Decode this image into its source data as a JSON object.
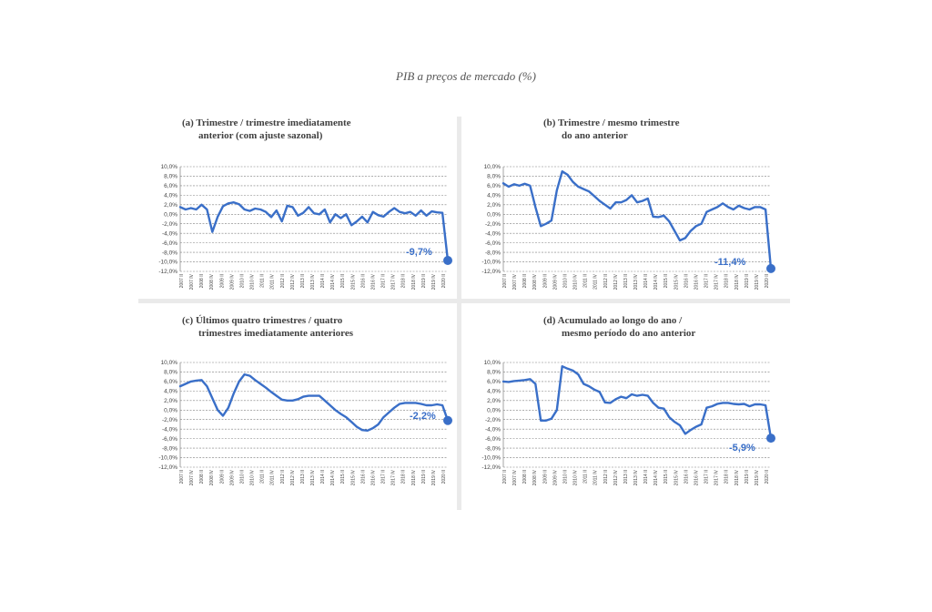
{
  "title": "PIB a preços de mercado (%)",
  "y_ticks": [
    "10,0%",
    "8,0%",
    "6,0%",
    "4,0%",
    "2,0%",
    "0,0%",
    "-2,0%",
    "-4,0%",
    "-6,0%",
    "-8,0%",
    "-10,0%",
    "-12,0%"
  ],
  "x_ticks": [
    "2007 II",
    "2007 IV",
    "2008 II",
    "2008 IV",
    "2009 II",
    "2009 IV",
    "2010 II",
    "2010 IV",
    "2011 II",
    "2011 IV",
    "2012 II",
    "2012 IV",
    "2013 II",
    "2013 IV",
    "2014 II",
    "2014 IV",
    "2015 II",
    "2015 IV",
    "2016 II",
    "2016 IV",
    "2017 II",
    "2017 IV",
    "2018 II",
    "2018 IV",
    "2019 II",
    "2019 IV",
    "2020 II"
  ],
  "colors": {
    "line": "#3a6fc8",
    "grid": "#7f7f7f",
    "title": "#555555"
  },
  "chart_data": [
    {
      "type": "line",
      "title": "(a) Trimestre / trimestre imediatamente anterior (com ajuste sazonal)",
      "title_lines": [
        "(a) Trimestre / trimestre imediatamente",
        "anterior (com ajuste sazonal)"
      ],
      "end_label": "-9,7%",
      "ylim": [
        -12,
        10
      ],
      "values": [
        1.5,
        1.0,
        1.3,
        1.0,
        2.0,
        1.0,
        -3.7,
        -0.5,
        1.7,
        2.3,
        2.5,
        2.1,
        1.0,
        0.7,
        1.2,
        1.0,
        0.5,
        -0.6,
        0.8,
        -1.5,
        1.8,
        1.5,
        -0.3,
        0.3,
        1.5,
        0.2,
        0.0,
        1.0,
        -1.7,
        0.0,
        -0.8,
        0.0,
        -2.3,
        -1.5,
        -0.5,
        -1.7,
        0.5,
        -0.2,
        -0.5,
        0.5,
        1.3,
        0.5,
        0.2,
        0.5,
        -0.3,
        0.8,
        -0.3,
        0.6,
        0.4,
        0.3,
        -9.7
      ]
    },
    {
      "type": "line",
      "title": "(b) Trimestre / mesmo trimestre do ano anterior",
      "title_lines": [
        "(b) Trimestre / mesmo trimestre",
        "do ano anterior"
      ],
      "end_label": "-11,4%",
      "ylim": [
        -12,
        10
      ],
      "values": [
        6.5,
        5.8,
        6.3,
        6.0,
        6.4,
        6.0,
        1.5,
        -2.5,
        -2.0,
        -1.3,
        5.0,
        9.0,
        8.3,
        6.8,
        5.8,
        5.3,
        4.8,
        3.8,
        2.8,
        2.0,
        1.2,
        2.5,
        2.5,
        3.0,
        4.0,
        2.5,
        2.8,
        3.3,
        -0.5,
        -0.6,
        -0.3,
        -1.5,
        -3.5,
        -5.5,
        -5.0,
        -3.5,
        -2.5,
        -2.0,
        0.5,
        1.0,
        1.5,
        2.3,
        1.5,
        1.0,
        1.8,
        1.3,
        1.0,
        1.5,
        1.5,
        1.0,
        -11.4
      ]
    },
    {
      "type": "line",
      "title": "(c) Últimos quatro trimestres / quatro trimestres imediatamente anteriores",
      "title_lines": [
        "(c) Últimos quatro  trimestres / quatro",
        "trimestres imediatamente anteriores"
      ],
      "end_label": "-2,2%",
      "ylim": [
        -12,
        10
      ],
      "values": [
        5.0,
        5.5,
        6.0,
        6.2,
        6.3,
        5.0,
        2.5,
        0.0,
        -1.2,
        0.5,
        3.5,
        6.0,
        7.5,
        7.2,
        6.3,
        5.5,
        4.7,
        3.8,
        3.0,
        2.2,
        2.0,
        2.0,
        2.3,
        2.8,
        3.0,
        3.0,
        3.0,
        2.0,
        1.0,
        0.0,
        -0.8,
        -1.5,
        -2.5,
        -3.5,
        -4.2,
        -4.3,
        -3.8,
        -3.0,
        -1.5,
        -0.5,
        0.5,
        1.3,
        1.5,
        1.5,
        1.5,
        1.3,
        1.0,
        1.0,
        1.2,
        1.0,
        -2.2
      ]
    },
    {
      "type": "line",
      "title": "(d) Acumulado ao longo do ano / mesmo período do ano anterior",
      "title_lines": [
        "(d) Acumulado ao longo do ano /",
        "mesmo período do ano anterior"
      ],
      "end_label": "-5,9%",
      "ylim": [
        -12,
        10
      ],
      "values": [
        6.0,
        5.9,
        6.1,
        6.2,
        6.3,
        6.5,
        5.5,
        -2.2,
        -2.2,
        -1.8,
        0.0,
        9.2,
        8.7,
        8.3,
        7.5,
        5.5,
        5.0,
        4.3,
        3.8,
        1.6,
        1.5,
        2.3,
        2.8,
        2.5,
        3.3,
        3.0,
        3.2,
        3.0,
        1.5,
        0.5,
        0.3,
        -1.5,
        -2.5,
        -3.2,
        -5.0,
        -4.2,
        -3.5,
        -3.0,
        0.5,
        0.8,
        1.3,
        1.5,
        1.5,
        1.3,
        1.2,
        1.3,
        0.8,
        1.2,
        1.2,
        1.0,
        -5.9
      ]
    }
  ]
}
